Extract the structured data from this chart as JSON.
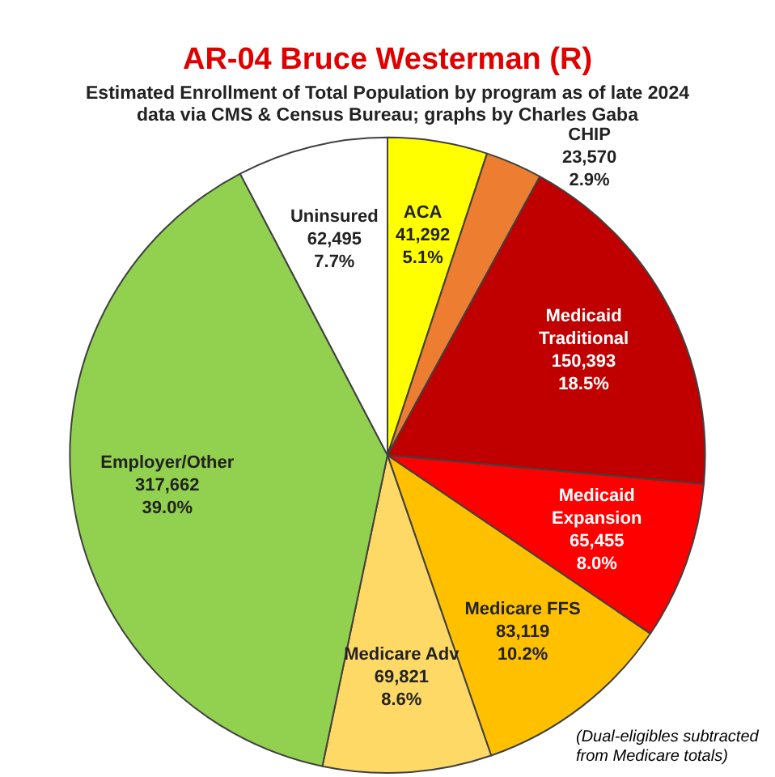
{
  "chart_data": {
    "type": "pie",
    "title": "AR-04 Bruce Westerman (R)",
    "subtitle": "Estimated Enrollment of Total Population by program as of late 2024\ndata via CMS & Census Bureau; graphs by Charles Gaba",
    "categories": [
      "ACA",
      "CHIP",
      "Medicaid Traditional",
      "Medicaid Expansion",
      "Medicare FFS",
      "Medicare Adv",
      "Employer/Other",
      "Uninsured"
    ],
    "values": [
      41292,
      23570,
      150393,
      65455,
      83119,
      69821,
      317662,
      62495
    ],
    "value_labels": [
      "41,292\n5.1%",
      "23,570\n2.9%",
      "150,393\n18.5%",
      "65,455\n8.0%",
      "83,119\n10.2%",
      "69,821\n8.6%",
      "317,662\n39.0%",
      "62,495\n7.7%"
    ],
    "colors": [
      "#ffff00",
      "#ed7d31",
      "#c00000",
      "#ff0000",
      "#ffc000",
      "#ffd966",
      "#92d050",
      "#ffffff"
    ],
    "legend": false,
    "annotations": [
      "(Dual-eligibles subtracted\nfrom Medicare totals)"
    ]
  }
}
